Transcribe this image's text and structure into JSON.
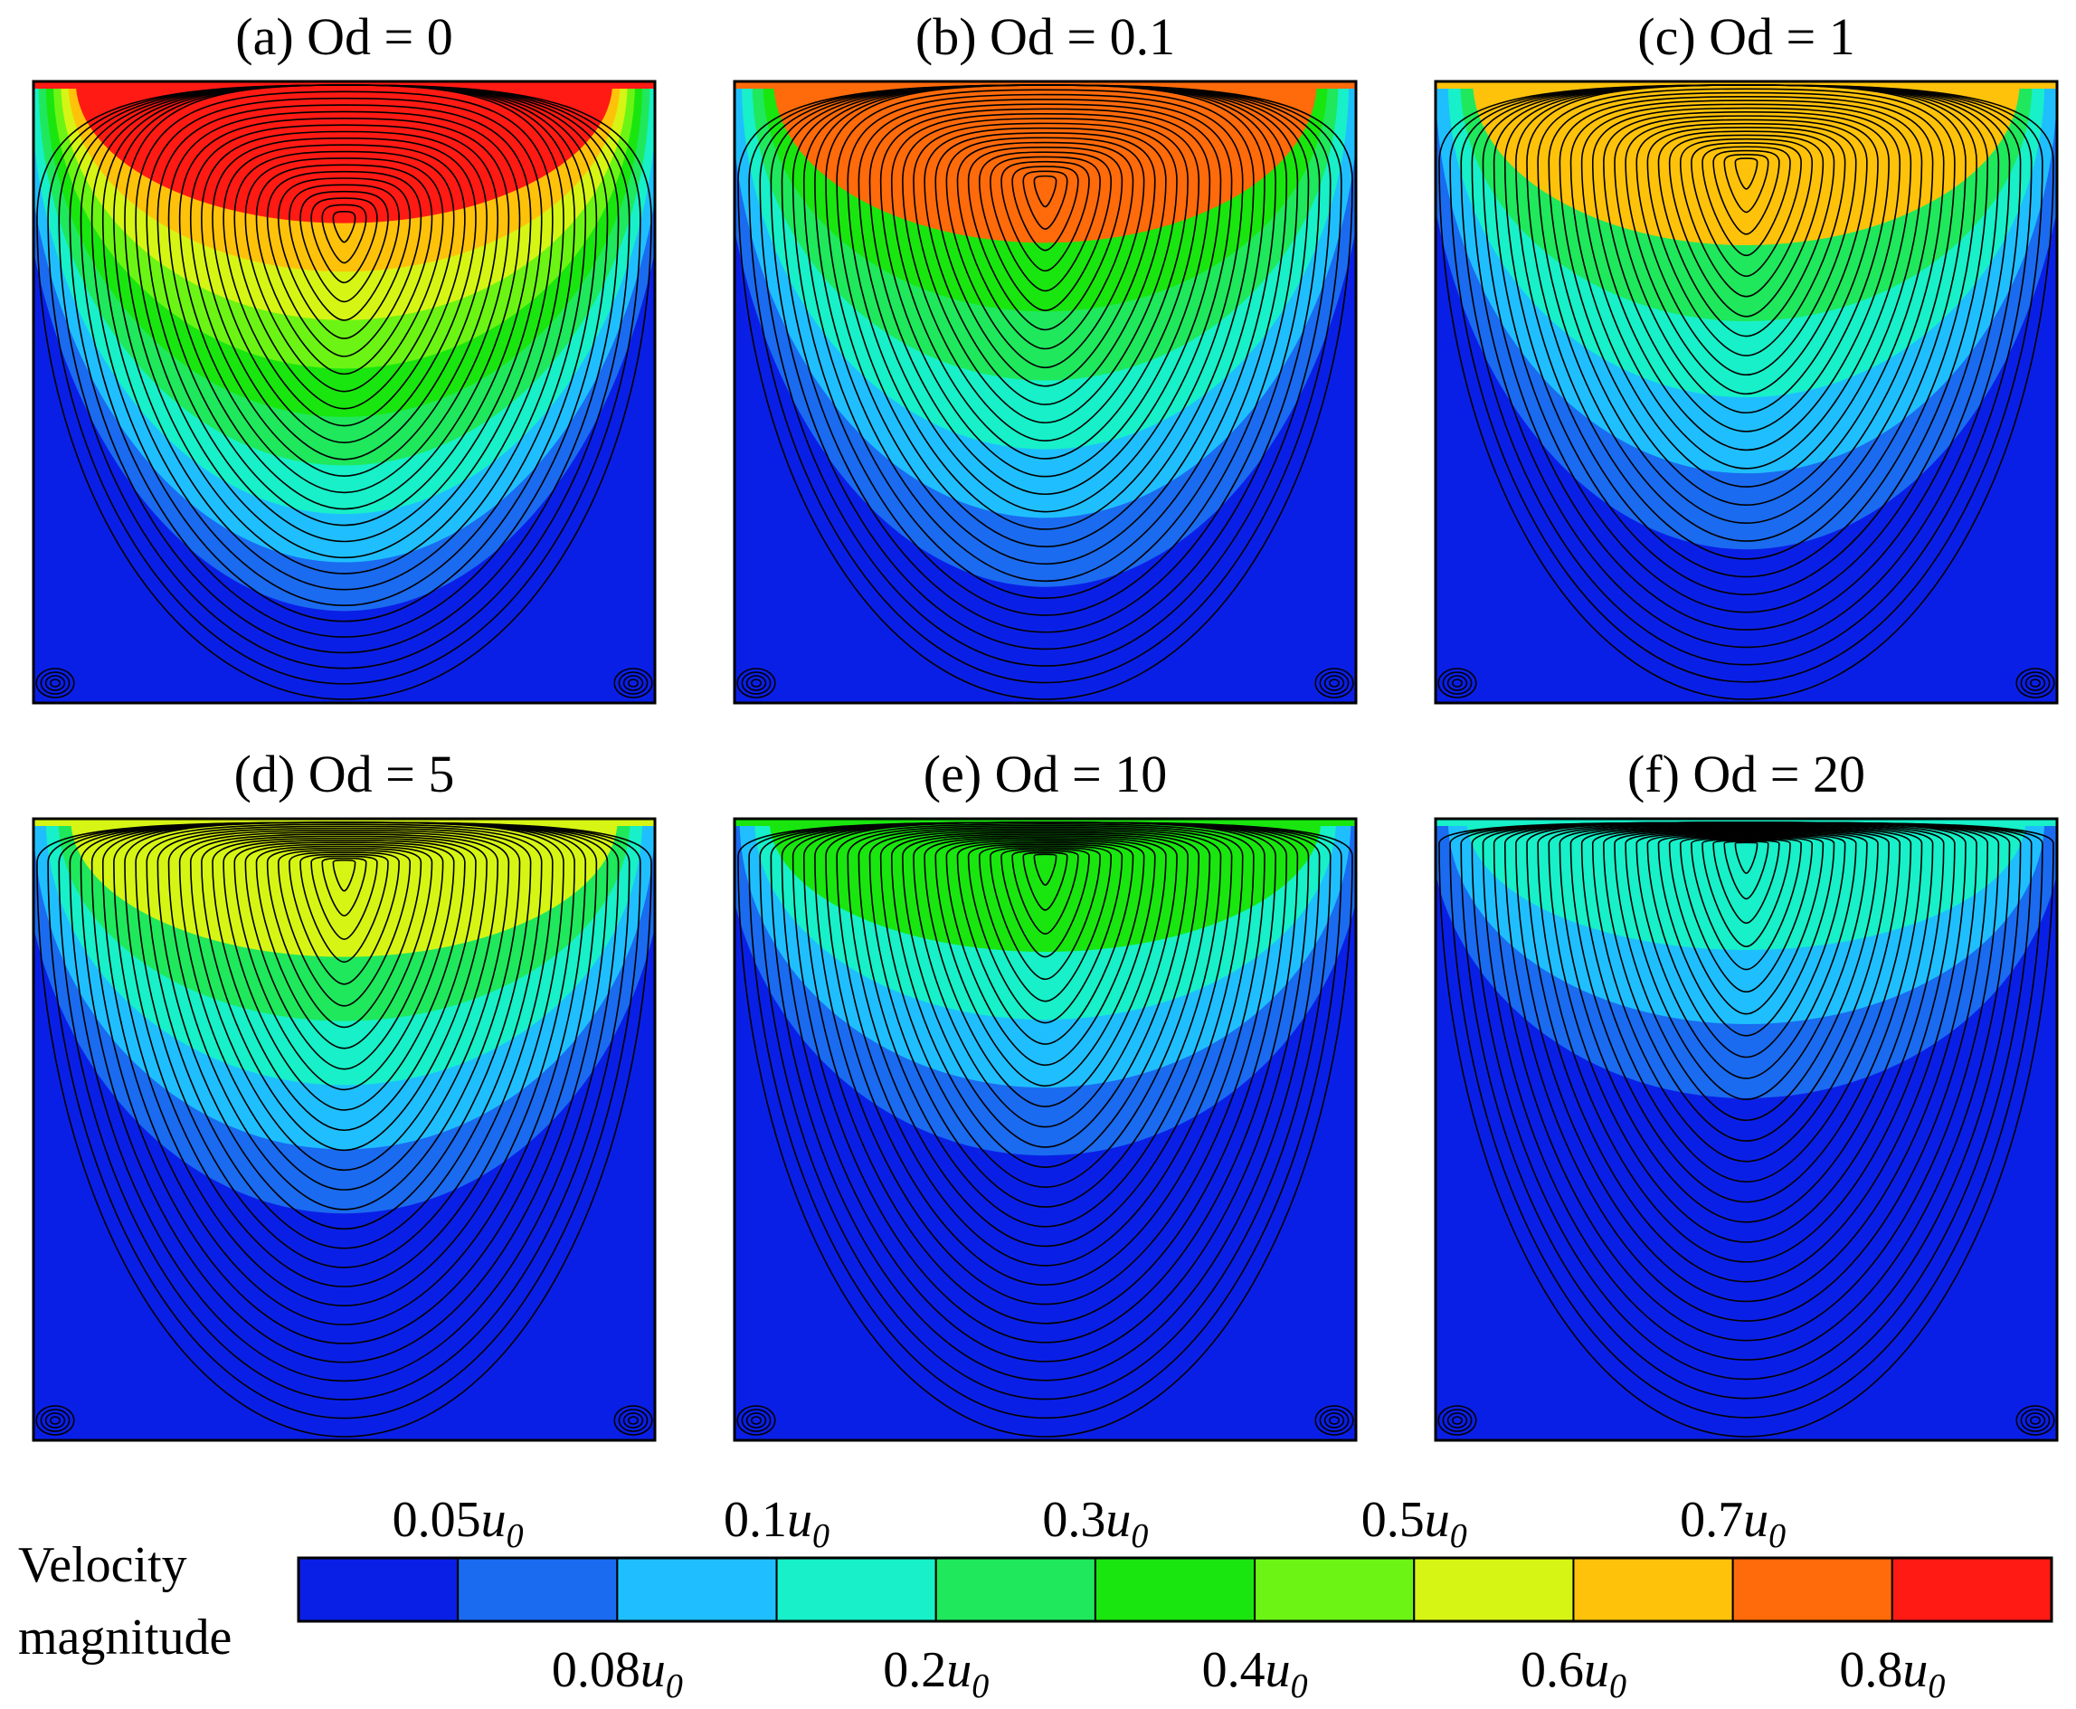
{
  "chart_data": {
    "type": "contour",
    "description_kind": "velocity magnitude contours with streamlines in a lid-driven cavity",
    "panels": [
      {
        "label": "(a) Od = 0",
        "od": 0,
        "vortex_center": [
          0.5,
          0.22
        ],
        "bands": [
          0.8,
          0.6,
          0.5,
          0.4,
          0.3,
          0.2,
          0.1,
          0.08,
          0.05
        ]
      },
      {
        "label": "(b) Od = 0.1",
        "od": 0.1,
        "vortex_center": [
          0.5,
          0.16
        ],
        "bands": [
          0.7,
          0.3,
          0.2,
          0.1,
          0.08,
          0.05
        ]
      },
      {
        "label": "(c) Od = 1",
        "od": 1,
        "vortex_center": [
          0.5,
          0.13
        ],
        "bands": [
          0.6,
          0.2,
          0.1,
          0.08,
          0.05
        ]
      },
      {
        "label": "(d) Od = 5",
        "od": 5,
        "vortex_center": [
          0.5,
          0.07
        ],
        "bands": [
          0.5,
          0.2,
          0.1,
          0.08,
          0.05
        ]
      },
      {
        "label": "(e) Od = 10",
        "od": 10,
        "vortex_center": [
          0.5,
          0.06
        ],
        "bands": [
          0.3,
          0.1,
          0.08,
          0.05
        ]
      },
      {
        "label": "(f) Od = 20",
        "od": 20,
        "vortex_center": [
          0.5,
          0.04
        ],
        "bands": [
          0.1,
          0.08,
          0.05
        ]
      }
    ],
    "colorbar": {
      "title_lines": [
        "Velocity",
        "magnitude"
      ],
      "levels": [
        0.05,
        0.08,
        0.1,
        0.2,
        0.3,
        0.4,
        0.5,
        0.6,
        0.7,
        0.8
      ],
      "unit": "u0",
      "colors": [
        "#0a1fe6",
        "#1a6bf0",
        "#1fbfff",
        "#17f0c8",
        "#1fe85c",
        "#19e60f",
        "#6cf514",
        "#d6f514",
        "#ffc20a",
        "#ff6a0a",
        "#ff1a14"
      ],
      "upper_labels": [
        "0.05",
        "0.1",
        "0.3",
        "0.5",
        "0.7"
      ],
      "lower_labels": [
        "0.08",
        "0.2",
        "0.4",
        "0.6",
        "0.8"
      ]
    }
  }
}
